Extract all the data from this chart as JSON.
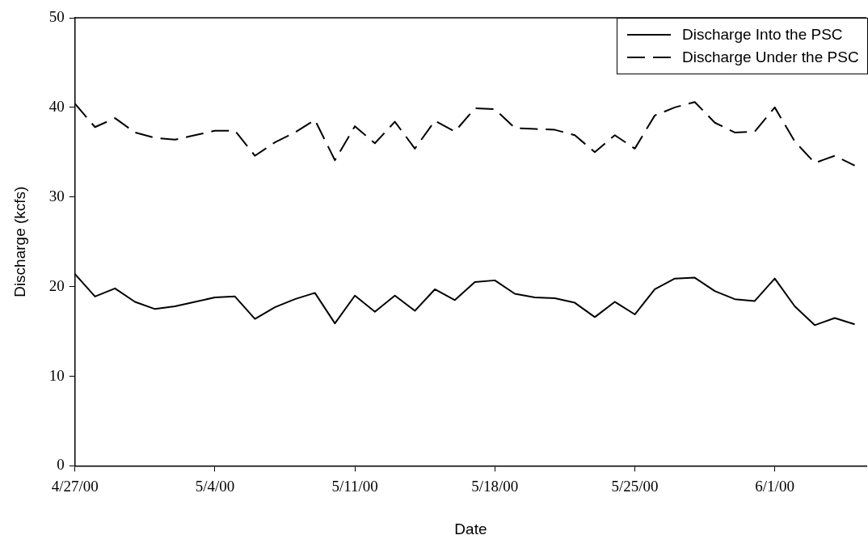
{
  "chart_data": {
    "type": "line",
    "xlabel": "Date",
    "ylabel": "Discharge (kcfs)",
    "x": [
      "2000-04-27",
      "2000-04-28",
      "2000-04-29",
      "2000-04-30",
      "2000-05-01",
      "2000-05-02",
      "2000-05-03",
      "2000-05-04",
      "2000-05-05",
      "2000-05-06",
      "2000-05-07",
      "2000-05-08",
      "2000-05-09",
      "2000-05-10",
      "2000-05-11",
      "2000-05-12",
      "2000-05-13",
      "2000-05-14",
      "2000-05-15",
      "2000-05-16",
      "2000-05-17",
      "2000-05-18",
      "2000-05-19",
      "2000-05-20",
      "2000-05-21",
      "2000-05-22",
      "2000-05-23",
      "2000-05-24",
      "2000-05-25",
      "2000-05-26",
      "2000-05-27",
      "2000-05-28",
      "2000-05-29",
      "2000-05-30",
      "2000-05-31",
      "2000-06-01",
      "2000-06-02",
      "2000-06-03",
      "2000-06-04",
      "2000-06-05"
    ],
    "series": [
      {
        "name": "Discharge Into the PSC",
        "color": "#000000",
        "line_style": "solid",
        "values": [
          21.4,
          18.9,
          19.8,
          18.3,
          17.5,
          17.8,
          18.3,
          18.8,
          18.9,
          16.4,
          17.7,
          18.6,
          19.3,
          15.9,
          19.0,
          17.2,
          19.0,
          17.3,
          19.7,
          18.5,
          20.5,
          20.7,
          19.2,
          18.8,
          18.7,
          18.2,
          16.6,
          18.3,
          16.9,
          19.7,
          20.9,
          21.0,
          19.5,
          18.6,
          18.4,
          20.9,
          17.8,
          15.7,
          16.5,
          15.8
        ]
      },
      {
        "name": "Discharge Under the PSC",
        "color": "#000000",
        "line_style": "dashed",
        "values": [
          40.4,
          37.8,
          38.8,
          37.2,
          36.6,
          36.4,
          36.9,
          37.4,
          37.4,
          34.6,
          36.1,
          37.2,
          38.6,
          34.1,
          37.9,
          36.0,
          38.4,
          35.4,
          38.5,
          37.3,
          39.9,
          39.8,
          37.7,
          37.6,
          37.5,
          36.9,
          35.0,
          36.9,
          35.4,
          39.1,
          40.0,
          40.6,
          38.3,
          37.2,
          37.3,
          40.0,
          36.2,
          33.8,
          34.6,
          33.5
        ]
      }
    ],
    "xlim": [
      "2000-04-27",
      "2000-06-05T14:00"
    ],
    "xticks": [
      {
        "value": "2000-04-27",
        "label": "4/27/00"
      },
      {
        "value": "2000-05-04",
        "label": "5/4/00"
      },
      {
        "value": "2000-05-11",
        "label": "5/11/00"
      },
      {
        "value": "2000-05-18",
        "label": "5/18/00"
      },
      {
        "value": "2000-05-25",
        "label": "5/25/00"
      },
      {
        "value": "2000-06-01",
        "label": "6/1/00"
      }
    ],
    "ylim": [
      0,
      50
    ],
    "yticks": [
      0,
      10,
      20,
      30,
      40,
      50
    ],
    "grid": false,
    "legend": "top right",
    "marker": "none"
  }
}
